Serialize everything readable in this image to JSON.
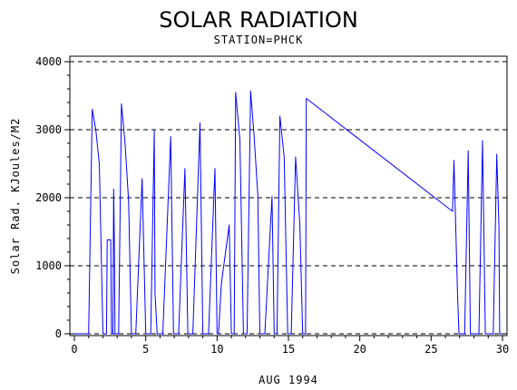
{
  "chart_data": {
    "type": "line",
    "title": "SOLAR RADIATION",
    "subtitle": "STATION=PHCK",
    "xlabel": "AUG 1994",
    "ylabel": "Solar Rad. KJoules/M2",
    "xlim": [
      0,
      30
    ],
    "ylim": [
      0,
      4000
    ],
    "x_ticks": [
      0,
      5,
      10,
      15,
      20,
      25,
      30
    ],
    "y_ticks": [
      0,
      1000,
      2000,
      3000,
      4000
    ],
    "grid": "horizontal-dashed",
    "colors": {
      "series": "#0000ff",
      "axis": "#000000"
    },
    "series": [
      {
        "points": [
          [
            0.0,
            0
          ],
          [
            1.0,
            0
          ],
          [
            1.25,
            3300
          ],
          [
            1.5,
            3000
          ],
          [
            1.75,
            2500
          ],
          [
            2.0,
            0
          ],
          [
            2.25,
            0
          ],
          [
            2.3,
            1380
          ],
          [
            2.55,
            1380
          ],
          [
            2.6,
            0
          ],
          [
            2.7,
            0
          ],
          [
            2.75,
            2130
          ],
          [
            2.8,
            1330
          ],
          [
            2.85,
            0
          ],
          [
            3.1,
            0
          ],
          [
            3.3,
            3380
          ],
          [
            3.55,
            2800
          ],
          [
            3.8,
            1950
          ],
          [
            4.0,
            0
          ],
          [
            4.3,
            0
          ],
          [
            4.75,
            2280
          ],
          [
            5.0,
            0
          ],
          [
            5.35,
            0
          ],
          [
            5.6,
            2990
          ],
          [
            5.65,
            600
          ],
          [
            5.8,
            0
          ],
          [
            6.2,
            0
          ],
          [
            6.75,
            2900
          ],
          [
            6.95,
            0
          ],
          [
            7.3,
            0
          ],
          [
            7.75,
            2430
          ],
          [
            7.95,
            0
          ],
          [
            8.3,
            0
          ],
          [
            8.8,
            3100
          ],
          [
            9.0,
            0
          ],
          [
            9.4,
            0
          ],
          [
            9.85,
            2430
          ],
          [
            10.0,
            0
          ],
          [
            10.1,
            0
          ],
          [
            10.3,
            740
          ],
          [
            10.85,
            1600
          ],
          [
            11.0,
            0
          ],
          [
            11.2,
            0
          ],
          [
            11.3,
            3550
          ],
          [
            11.6,
            2850
          ],
          [
            11.85,
            0
          ],
          [
            12.1,
            0
          ],
          [
            12.35,
            3570
          ],
          [
            12.6,
            2900
          ],
          [
            12.85,
            2050
          ],
          [
            13.0,
            0
          ],
          [
            13.35,
            0
          ],
          [
            13.85,
            2020
          ],
          [
            14.0,
            0
          ],
          [
            14.2,
            0
          ],
          [
            14.4,
            3200
          ],
          [
            14.7,
            2600
          ],
          [
            14.95,
            0
          ],
          [
            15.2,
            0
          ],
          [
            15.5,
            2600
          ],
          [
            15.8,
            1600
          ],
          [
            16.0,
            0
          ],
          [
            16.2,
            0
          ],
          [
            16.25,
            3460
          ],
          [
            26.5,
            1800
          ],
          [
            26.6,
            2550
          ],
          [
            26.85,
            600
          ],
          [
            26.95,
            0
          ],
          [
            27.35,
            0
          ],
          [
            27.6,
            2690
          ],
          [
            27.75,
            0
          ],
          [
            28.35,
            0
          ],
          [
            28.6,
            2840
          ],
          [
            28.8,
            0
          ],
          [
            29.35,
            0
          ],
          [
            29.6,
            2640
          ],
          [
            29.75,
            1560
          ],
          [
            29.8,
            0
          ],
          [
            30.0,
            0
          ]
        ]
      }
    ]
  }
}
